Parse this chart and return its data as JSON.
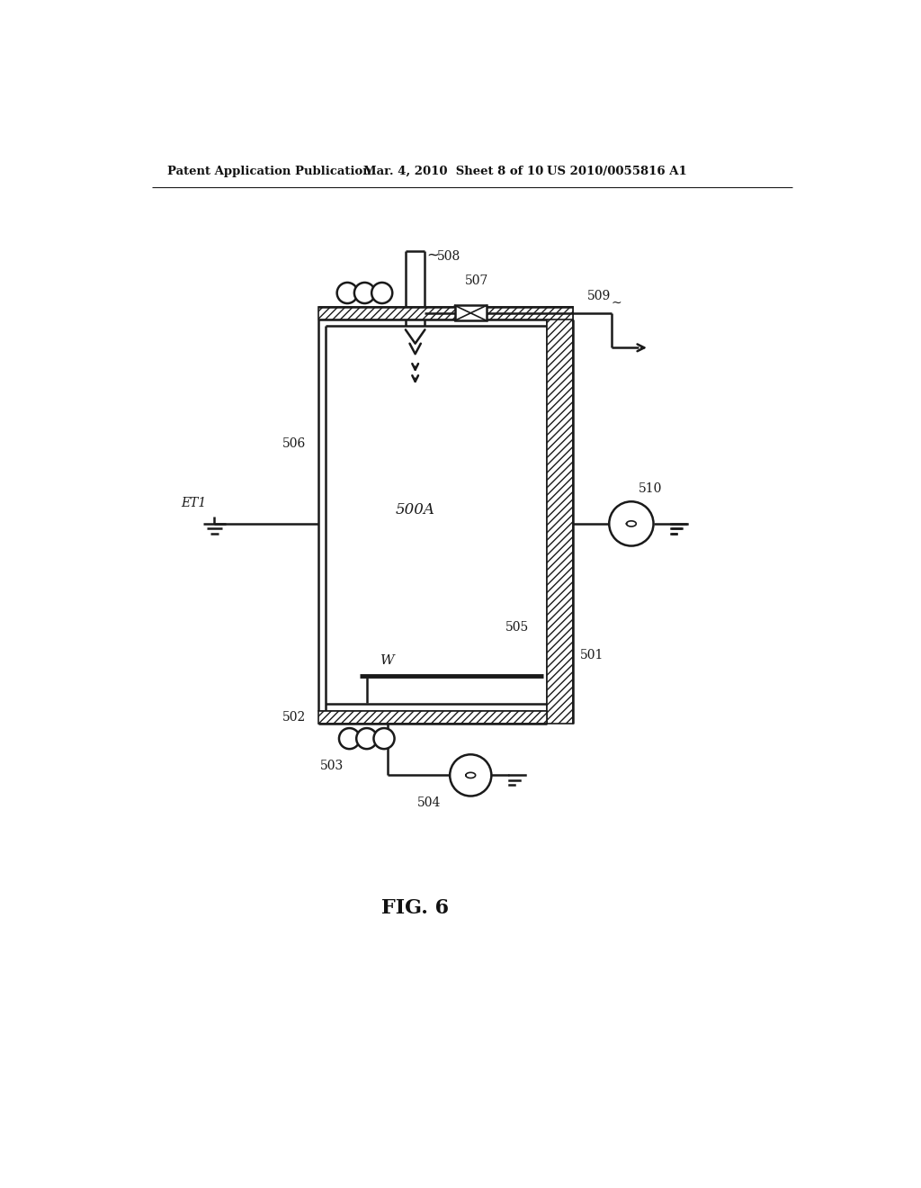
{
  "bg_color": "#ffffff",
  "line_color": "#1a1a1a",
  "header_left": "Patent Application Publication",
  "header_mid": "Mar. 4, 2010  Sheet 8 of 10",
  "header_right": "US 2010/0055816 A1",
  "fig_label": "FIG. 6",
  "labels": {
    "ET1": "ET1",
    "500A": "500A",
    "501": "501",
    "502": "502",
    "503": "503",
    "504": "504",
    "505": "505",
    "506": "506",
    "507": "507",
    "508": "508",
    "509": "509",
    "510": "510",
    "W": "W"
  }
}
